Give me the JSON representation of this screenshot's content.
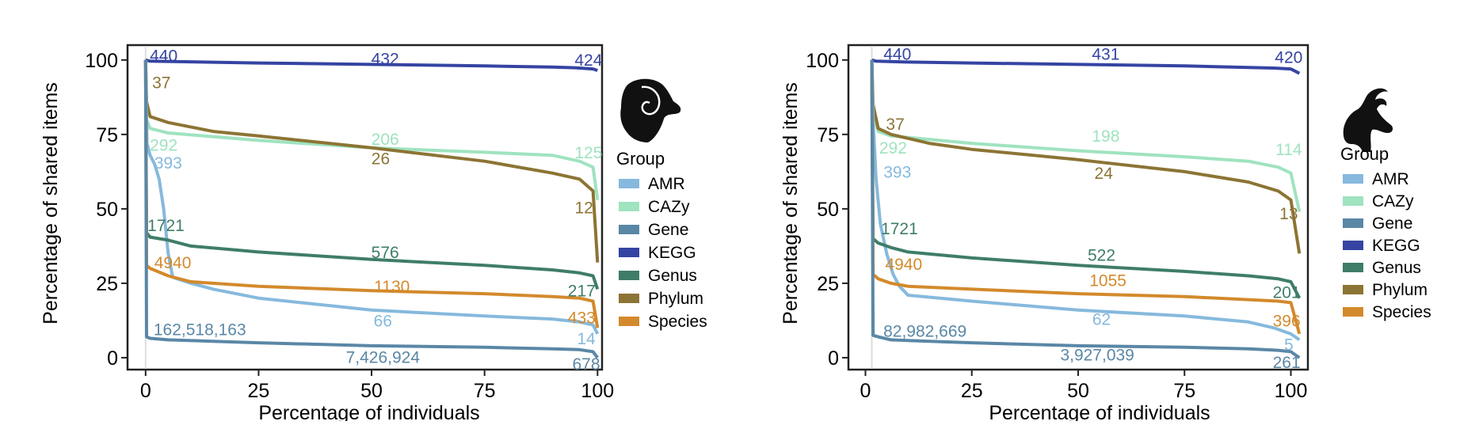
{
  "colors": {
    "AMR": "#86b9dd",
    "CAZy": "#9fe3bf",
    "Gene": "#5a87a6",
    "KEGG": "#3544a2",
    "Genus": "#3f7d68",
    "Phylum": "#8c7434",
    "Species": "#d38a2c"
  },
  "chart_data": [
    {
      "type": "line",
      "panel": "left",
      "animal_icon": "sheep-icon",
      "xlabel": "Percentage of individuals",
      "ylabel": "Percentage of shared items",
      "xlim": [
        -4,
        101
      ],
      "ylim": [
        -4,
        105
      ],
      "xticks": [
        0,
        25,
        50,
        75,
        100
      ],
      "yticks": [
        0,
        25,
        50,
        75,
        100
      ],
      "legend": {
        "title": "Group",
        "position": "right",
        "entries": [
          "AMR",
          "CAZy",
          "Gene",
          "KEGG",
          "Genus",
          "Phylum",
          "Species"
        ]
      },
      "series": [
        {
          "name": "KEGG",
          "x": [
            0,
            1,
            10,
            25,
            50,
            75,
            90,
            95,
            99,
            100
          ],
          "y": [
            100,
            99.6,
            99.4,
            99,
            98.5,
            98,
            97.6,
            97.4,
            97,
            96.5
          ],
          "labels": [
            {
              "text": "440",
              "x": 4,
              "y": 101
            },
            {
              "text": "432",
              "x": 53,
              "y": 100
            },
            {
              "text": "424",
              "x": 98,
              "y": 99.5
            }
          ]
        },
        {
          "name": "CAZy",
          "x": [
            0,
            0.2,
            1,
            5,
            25,
            50,
            75,
            90,
            96,
            99,
            100
          ],
          "y": [
            100,
            80,
            77,
            75.5,
            73,
            70.5,
            69,
            68,
            66,
            64,
            53
          ],
          "labels": [
            {
              "text": "292",
              "x": 4,
              "y": 71
            },
            {
              "text": "206",
              "x": 53,
              "y": 73
            },
            {
              "text": "125",
              "x": 98,
              "y": 68.5
            }
          ]
        },
        {
          "name": "Phylum",
          "x": [
            0,
            0.2,
            1,
            5,
            15,
            25,
            50,
            75,
            90,
            96,
            99,
            100
          ],
          "y": [
            100,
            86,
            81,
            79,
            76,
            74.5,
            70.5,
            66,
            62,
            60,
            56,
            32
          ],
          "labels": [
            {
              "text": "37",
              "x": 3.5,
              "y": 92
            },
            {
              "text": "26",
              "x": 52,
              "y": 66.5
            },
            {
              "text": "12",
              "x": 97,
              "y": 50
            }
          ]
        },
        {
          "name": "AMR",
          "x": [
            0,
            0.3,
            1,
            2,
            3,
            4,
            5,
            6,
            10,
            15,
            25,
            50,
            75,
            90,
            96,
            99,
            100
          ],
          "y": [
            100,
            72,
            68,
            65,
            60,
            50,
            35,
            27,
            25,
            23,
            20,
            16,
            14,
            13,
            12,
            11,
            8
          ],
          "labels": [
            {
              "text": "393",
              "x": 5,
              "y": 65
            },
            {
              "text": "66",
              "x": 52.5,
              "y": 12
            },
            {
              "text": "14",
              "x": 97.5,
              "y": 6
            }
          ]
        },
        {
          "name": "Genus",
          "x": [
            0,
            0.2,
            1,
            5,
            10,
            25,
            50,
            75,
            90,
            96,
            99,
            100
          ],
          "y": [
            100,
            42,
            40.5,
            39.5,
            37.5,
            35.5,
            33,
            31,
            29.5,
            28.5,
            27.5,
            23
          ],
          "labels": [
            {
              "text": "1721",
              "x": 4.5,
              "y": 44
            },
            {
              "text": "576",
              "x": 53,
              "y": 35
            },
            {
              "text": "217",
              "x": 96.5,
              "y": 22
            }
          ]
        },
        {
          "name": "Species",
          "x": [
            0,
            0.2,
            1,
            5,
            10,
            25,
            50,
            75,
            90,
            96,
            99,
            100
          ],
          "y": [
            100,
            31,
            30,
            27.5,
            25.5,
            24,
            22.5,
            21.5,
            20.5,
            20,
            19,
            10
          ],
          "labels": [
            {
              "text": "4940",
              "x": 6,
              "y": 31.5
            },
            {
              "text": "1130",
              "x": 54.5,
              "y": 23.5
            },
            {
              "text": "433",
              "x": 96.5,
              "y": 13
            }
          ]
        },
        {
          "name": "Gene",
          "x": [
            0,
            0.2,
            1,
            5,
            25,
            50,
            75,
            90,
            96,
            99,
            100
          ],
          "y": [
            100,
            7,
            6.5,
            6,
            5,
            4,
            3.5,
            3,
            2.7,
            2,
            0
          ],
          "labels": [
            {
              "text": "162,518,163",
              "x": 12,
              "y": 9
            },
            {
              "text": "7,426,924",
              "x": 52.5,
              "y": -0.3
            },
            {
              "text": "678",
              "x": 97.5,
              "y": -2.5
            }
          ]
        }
      ]
    },
    {
      "type": "line",
      "panel": "right",
      "animal_icon": "goat-icon",
      "xlabel": "Percentage of individuals",
      "ylabel": "Percentage of shared items",
      "xlim": [
        -4,
        104
      ],
      "ylim": [
        -4,
        105
      ],
      "xticks": [
        0,
        25,
        50,
        75,
        100
      ],
      "yticks": [
        0,
        25,
        50,
        75,
        100
      ],
      "legend": {
        "title": "Group",
        "position": "right",
        "entries": [
          "AMR",
          "CAZy",
          "Gene",
          "KEGG",
          "Genus",
          "Phylum",
          "Species"
        ]
      },
      "series": [
        {
          "name": "KEGG",
          "x": [
            1.5,
            2.5,
            10,
            25,
            50,
            75,
            90,
            96,
            100,
            102
          ],
          "y": [
            100,
            99.6,
            99.3,
            99,
            98.5,
            98,
            97.5,
            97.3,
            97,
            95.5
          ],
          "labels": [
            {
              "text": "440",
              "x": 7.5,
              "y": 101.5
            },
            {
              "text": "431",
              "x": 56.5,
              "y": 101.5
            },
            {
              "text": "420",
              "x": 99.5,
              "y": 100.5
            }
          ]
        },
        {
          "name": "CAZy",
          "x": [
            1.5,
            1.8,
            3,
            6,
            25,
            50,
            75,
            90,
            97,
            100,
            102
          ],
          "y": [
            100,
            82,
            76,
            74.5,
            72,
            69.5,
            67.5,
            66,
            64,
            62,
            49
          ],
          "labels": [
            {
              "text": "292",
              "x": 6.5,
              "y": 70
            },
            {
              "text": "198",
              "x": 56.5,
              "y": 74
            },
            {
              "text": "114",
              "x": 99.5,
              "y": 69.5
            }
          ]
        },
        {
          "name": "Phylum",
          "x": [
            1.5,
            1.8,
            3,
            6,
            15,
            25,
            50,
            75,
            90,
            97,
            100,
            102
          ],
          "y": [
            100,
            85,
            77,
            75,
            72,
            70,
            66.5,
            62.5,
            59,
            56,
            53,
            35
          ],
          "labels": [
            {
              "text": "37",
              "x": 7,
              "y": 78
            },
            {
              "text": "24",
              "x": 56,
              "y": 61.5
            },
            {
              "text": "13",
              "x": 99.5,
              "y": 48
            }
          ]
        },
        {
          "name": "AMR",
          "x": [
            1.5,
            1.8,
            2.5,
            3.5,
            5,
            6.5,
            8,
            10,
            25,
            50,
            75,
            90,
            96,
            100,
            102
          ],
          "y": [
            100,
            80,
            60,
            45,
            35,
            28,
            24,
            21,
            19,
            16,
            14,
            12,
            10,
            8,
            6
          ],
          "labels": [
            {
              "text": "393",
              "x": 7.5,
              "y": 62
            },
            {
              "text": "62",
              "x": 55.5,
              "y": 12.5
            },
            {
              "text": "5",
              "x": 99.5,
              "y": 4
            }
          ]
        },
        {
          "name": "Genus",
          "x": [
            1.5,
            1.8,
            3,
            6,
            10,
            25,
            50,
            75,
            90,
            97,
            100,
            102
          ],
          "y": [
            100,
            40,
            38.5,
            37,
            35.5,
            33.5,
            31,
            29,
            27.5,
            26.5,
            25.5,
            20
          ],
          "labels": [
            {
              "text": "1721",
              "x": 8,
              "y": 43
            },
            {
              "text": "522",
              "x": 55.5,
              "y": 34
            },
            {
              "text": "201",
              "x": 99,
              "y": 21.5
            }
          ]
        },
        {
          "name": "Species",
          "x": [
            1.5,
            1.8,
            3,
            6,
            10,
            25,
            50,
            75,
            90,
            97,
            100,
            102
          ],
          "y": [
            100,
            28,
            26.5,
            25,
            24,
            23,
            21.5,
            20.5,
            19.5,
            19,
            18.5,
            8
          ],
          "labels": [
            {
              "text": "4940",
              "x": 9,
              "y": 31
            },
            {
              "text": "1055",
              "x": 57,
              "y": 25.5
            },
            {
              "text": "396",
              "x": 99,
              "y": 12
            }
          ]
        },
        {
          "name": "Gene",
          "x": [
            1.5,
            1.8,
            3,
            6,
            25,
            50,
            75,
            90,
            97,
            100,
            102
          ],
          "y": [
            100,
            7.5,
            7,
            6,
            5,
            4,
            3.5,
            3,
            2.5,
            2,
            0
          ],
          "labels": [
            {
              "text": "82,982,669",
              "x": 14,
              "y": 8.5
            },
            {
              "text": "3,927,039",
              "x": 54.5,
              "y": 0.5
            },
            {
              "text": "261",
              "x": 99,
              "y": -2
            }
          ]
        }
      ]
    }
  ]
}
